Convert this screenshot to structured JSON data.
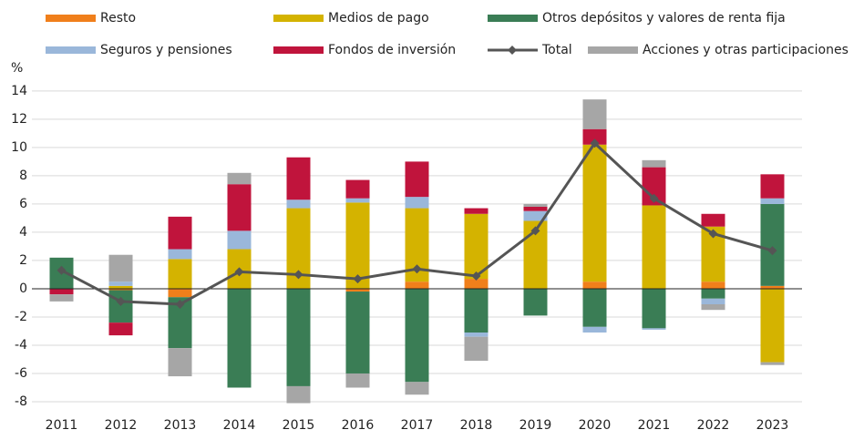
{
  "chart_data": {
    "type": "bar",
    "stacked": true,
    "y_unit": "%",
    "categories": [
      "2011",
      "2012",
      "2013",
      "2014",
      "2015",
      "2016",
      "2017",
      "2018",
      "2019",
      "2020",
      "2021",
      "2022",
      "2023"
    ],
    "series": [
      {
        "name": "Resto",
        "color": "#f07f1b",
        "values": [
          0,
          -0.1,
          -0.6,
          0,
          0,
          -0.2,
          0.5,
          0.7,
          0,
          0.5,
          0,
          0.5,
          0.2
        ]
      },
      {
        "name": "Medios de pago",
        "color": "#d4b300",
        "values": [
          0,
          0.2,
          2.1,
          2.8,
          5.7,
          6.1,
          5.2,
          4.6,
          4.8,
          9.7,
          5.9,
          3.9,
          -5.2
        ]
      },
      {
        "name": "Otros depósitos y valores de renta fija",
        "color": "#3a7d55",
        "values": [
          2.2,
          -2.3,
          -3.6,
          -7.0,
          -6.9,
          -5.8,
          -6.6,
          -3.1,
          -1.9,
          -2.7,
          -2.8,
          -0.7,
          5.8
        ]
      },
      {
        "name": "Seguros y pensiones",
        "color": "#9ab7da",
        "values": [
          0,
          0.3,
          0.7,
          1.3,
          0.6,
          0.3,
          0.8,
          -0.3,
          0.7,
          -0.4,
          -0.1,
          -0.4,
          0.4
        ]
      },
      {
        "name": "Fondos de inversión",
        "color": "#c0143c",
        "values": [
          -0.4,
          -0.9,
          2.3,
          3.3,
          3.0,
          1.3,
          2.5,
          0.4,
          0.3,
          1.1,
          2.7,
          0.9,
          1.7
        ]
      },
      {
        "name": "Total",
        "type": "line",
        "color": "#555555",
        "values": [
          1.3,
          -0.9,
          -1.1,
          1.2,
          1.0,
          0.7,
          1.4,
          0.9,
          4.1,
          10.3,
          6.4,
          3.9,
          2.7
        ]
      },
      {
        "name": "Acciones y otras participaciones",
        "color": "#a6a6a6",
        "values": [
          -0.5,
          1.9,
          -2.0,
          0.8,
          -1.2,
          -1.0,
          -0.9,
          -1.7,
          0.2,
          2.1,
          0.5,
          -0.4,
          -0.2
        ]
      }
    ],
    "ylim": [
      -9,
      14.7
    ],
    "yticks": [
      -8,
      -6,
      -4,
      -2,
      0,
      2,
      4,
      6,
      8,
      10,
      12,
      14
    ],
    "grid": true
  }
}
